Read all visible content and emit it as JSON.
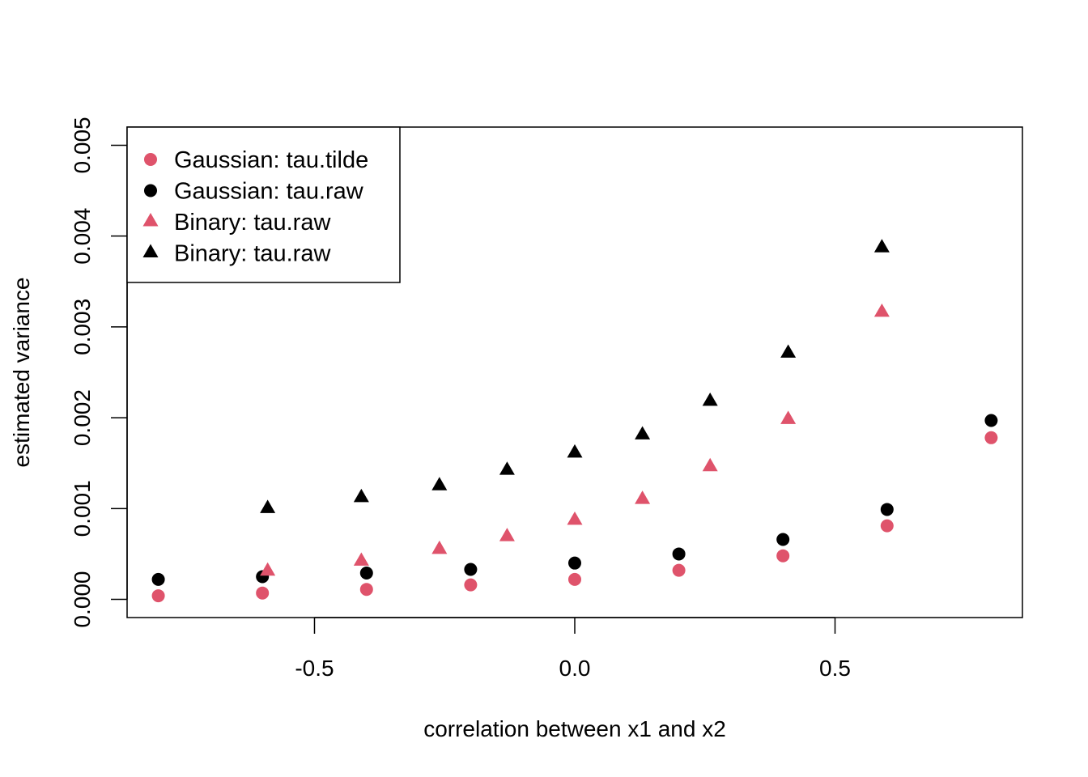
{
  "chart_data": {
    "type": "scatter",
    "xlabel": "correlation between x1 and x2",
    "ylabel": "estimated variance",
    "xlim": [
      -0.86,
      0.86
    ],
    "ylim": [
      -0.0002,
      0.0052
    ],
    "x_ticks": [
      {
        "value": -0.5,
        "label": "-0.5"
      },
      {
        "value": 0.0,
        "label": "0.0"
      },
      {
        "value": 0.5,
        "label": "0.5"
      }
    ],
    "y_ticks": [
      {
        "value": 0.0,
        "label": "0.000"
      },
      {
        "value": 0.001,
        "label": "0.001"
      },
      {
        "value": 0.002,
        "label": "0.002"
      },
      {
        "value": 0.003,
        "label": "0.003"
      },
      {
        "value": 0.004,
        "label": "0.004"
      },
      {
        "value": 0.005,
        "label": "0.005"
      }
    ],
    "grid": false,
    "legend_position": "top-left",
    "series": [
      {
        "name": "Gaussian: tau.tilde",
        "marker": "circle",
        "color": "#DF536B",
        "x": [
          -0.8,
          -0.6,
          -0.4,
          -0.2,
          0.0,
          0.2,
          0.4,
          0.6,
          0.8
        ],
        "y": [
          4e-05,
          7e-05,
          0.00011,
          0.00016,
          0.00022,
          0.00032,
          0.00048,
          0.00081,
          0.00178
        ]
      },
      {
        "name": "Gaussian: tau.raw",
        "marker": "circle",
        "color": "#000000",
        "x": [
          -0.8,
          -0.6,
          -0.4,
          -0.2,
          0.0,
          0.2,
          0.4,
          0.6,
          0.8
        ],
        "y": [
          0.00022,
          0.00025,
          0.00029,
          0.00033,
          0.0004,
          0.0005,
          0.00066,
          0.00099,
          0.00197
        ]
      },
      {
        "name": "Binary: tau.raw",
        "marker": "triangle",
        "color": "#DF536B",
        "x": [
          -0.59,
          -0.41,
          -0.26,
          -0.13,
          0.0,
          0.13,
          0.26,
          0.41,
          0.59
        ],
        "y": [
          0.00031,
          0.00042,
          0.00055,
          0.00069,
          0.00087,
          0.0011,
          0.00146,
          0.00198,
          0.00316
        ]
      },
      {
        "name": "Binary: tau.raw",
        "marker": "triangle",
        "color": "#000000",
        "x": [
          -0.59,
          -0.41,
          -0.26,
          -0.13,
          0.0,
          0.13,
          0.26,
          0.41,
          0.59
        ],
        "y": [
          0.001,
          0.00112,
          0.00125,
          0.00142,
          0.00161,
          0.00181,
          0.00218,
          0.00271,
          0.00387
        ]
      }
    ]
  }
}
